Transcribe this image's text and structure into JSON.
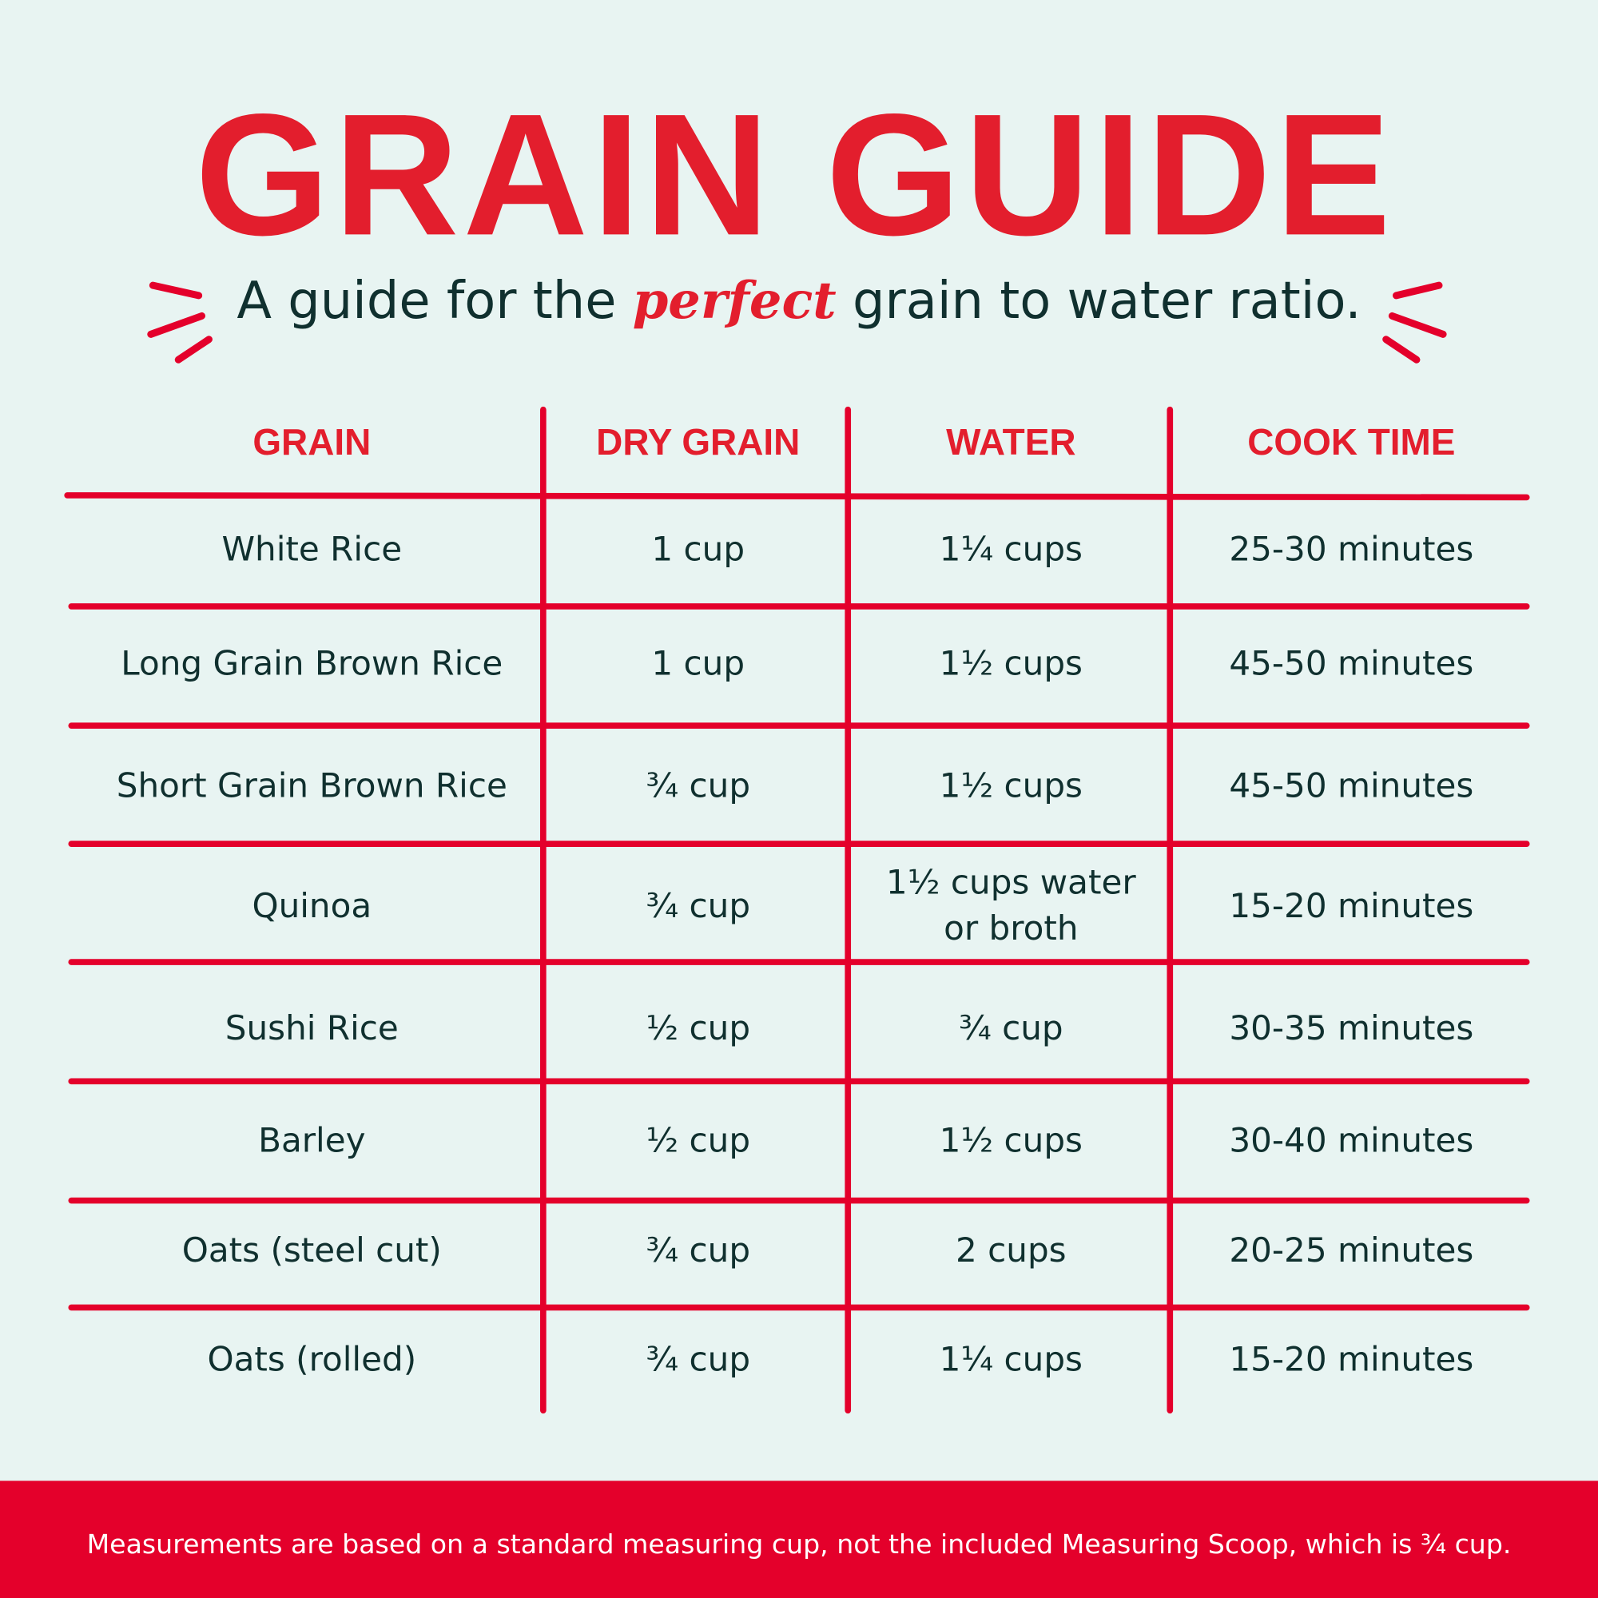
{
  "header": {
    "title": "GRAIN GUIDE",
    "subtitle": {
      "before": "A guide for the",
      "emphasis": "perfect",
      "after": "grain to water ratio."
    }
  },
  "table": {
    "headers": [
      "GRAIN",
      "DRY GRAIN",
      "WATER",
      "COOK TIME"
    ],
    "rows": [
      [
        "White Rice",
        "1 cup",
        "1¼ cups",
        "25-30 minutes"
      ],
      [
        "Long Grain Brown Rice",
        "1 cup",
        "1½ cups",
        "45-50 minutes"
      ],
      [
        "Short Grain Brown Rice",
        "¾ cup",
        "1½ cups",
        "45-50 minutes"
      ],
      [
        "Quinoa",
        "¾ cup",
        "1½ cups water or broth",
        "15-20 minutes"
      ],
      [
        "Sushi Rice",
        "½ cup",
        "¾ cup",
        "30-35 minutes"
      ],
      [
        "Barley",
        "½ cup",
        "1½ cups",
        "30-40 minutes"
      ],
      [
        "Oats (steel cut)",
        "¾ cup",
        "2 cups",
        "20-25 minutes"
      ],
      [
        "Oats (rolled)",
        "¾ cup",
        "1¼ cups",
        "15-20 minutes"
      ]
    ]
  },
  "footer": {
    "note": "Measurements are based on a standard measuring cup, not the included Measuring Scoop, which is ¾ cup."
  }
}
